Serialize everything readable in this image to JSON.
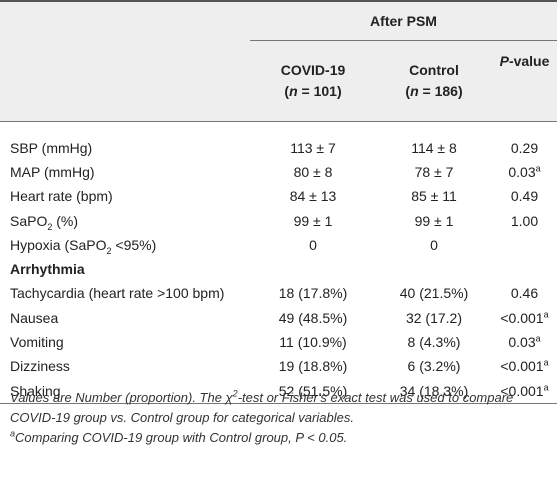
{
  "header": {
    "group": "After PSM",
    "covid": "COVID-19",
    "covid_n_prefix": "(",
    "covid_n_var": "n",
    "covid_n_rest": " = 101)",
    "control": "Control",
    "control_n_prefix": "(",
    "control_n_var": "n",
    "control_n_rest": " = 186)",
    "pvalue_italic": "P",
    "pvalue_rest": "-value"
  },
  "rows": [
    {
      "label": "SBP (mmHg)",
      "covid": "113 ± 7",
      "control": "114 ± 8",
      "p": "0.29",
      "sup": ""
    },
    {
      "label": "MAP (mmHg)",
      "covid": "80 ± 8",
      "control": "78 ± 7",
      "p": "0.03",
      "sup": "a"
    },
    {
      "label": "Heart rate (bpm)",
      "covid": "84 ± 13",
      "control": "85 ± 11",
      "p": "0.49",
      "sup": ""
    },
    {
      "label_pre": "SaPO",
      "label_sub": "2",
      "label_post": " (%)",
      "covid": "99 ± 1",
      "control": "99 ± 1",
      "p": "1.00",
      "sup": ""
    },
    {
      "label_pre": "Hypoxia (SaPO",
      "label_sub": "2",
      "label_post": " <95%)",
      "covid": "0",
      "control": "0",
      "p": "",
      "sup": ""
    },
    {
      "label": "Arrhythmia",
      "covid": "",
      "control": "",
      "p": "",
      "sup": ""
    },
    {
      "label": "Tachycardia (heart rate >100 bpm)",
      "covid": "18 (17.8%)",
      "control": "40 (21.5%)",
      "p": "0.46",
      "sup": ""
    },
    {
      "label": "Nausea",
      "covid": "49 (48.5%)",
      "control": "32 (17.2)",
      "p": "<0.001",
      "sup": "a"
    },
    {
      "label": "Vomiting",
      "covid": "11 (10.9%)",
      "control": "8 (4.3%)",
      "p": "0.03",
      "sup": "a"
    },
    {
      "label": "Dizziness",
      "covid": "19 (18.8%)",
      "control": "6 (3.2%)",
      "p": "<0.001",
      "sup": "a"
    },
    {
      "label": "Shaking",
      "covid": "52 (51.5%)",
      "control": "34 (18.3%)",
      "p": "<0.001",
      "sup": "a"
    }
  ],
  "notes": {
    "line1_pre": "Values are Number (proportion). The χ",
    "line1_sup": "2",
    "line1_post": "-test or Fisher's exact test was used to compare COVID-19 group vs. Control group for categorical variables.",
    "line2_sup": "a",
    "line2_text": "Comparing COVID-19 group with Control group, P < 0.05."
  }
}
